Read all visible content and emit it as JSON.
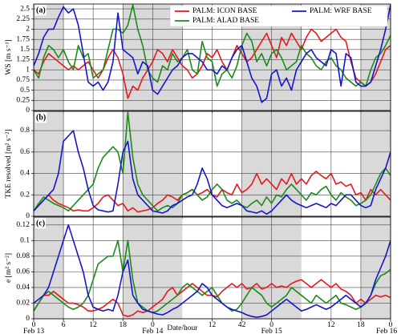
{
  "chart_data": [
    {
      "type": "line",
      "panel_label": "(a)",
      "ylabel": "WS [m s⁻¹]",
      "ylim": [
        0,
        2.62
      ],
      "yticks": [
        0,
        0.25,
        0.5,
        0.75,
        1,
        1.25,
        1.5,
        1.75,
        2,
        2.25,
        2.5
      ],
      "xlim": [
        0,
        72
      ],
      "xticks": [
        0,
        6,
        12,
        18,
        24,
        30,
        36,
        42,
        48,
        54,
        60,
        66,
        72
      ],
      "night": [
        [
          0,
          6
        ],
        [
          18,
          30
        ],
        [
          42,
          54
        ],
        [
          66,
          72
        ]
      ],
      "grid": true,
      "legend": "upper right",
      "x": [
        0,
        1,
        2,
        3,
        4,
        5,
        6,
        7,
        8,
        9,
        10,
        11,
        12,
        13,
        14,
        15,
        16,
        17,
        18,
        19,
        20,
        21,
        22,
        23,
        24,
        25,
        26,
        27,
        28,
        29,
        30,
        31,
        32,
        33,
        34,
        35,
        36,
        37,
        38,
        39,
        40,
        41,
        42,
        43,
        44,
        45,
        46,
        47,
        48,
        49,
        50,
        51,
        52,
        53,
        54,
        55,
        56,
        57,
        58,
        59,
        60,
        61,
        62,
        63,
        64,
        65,
        66,
        67,
        68,
        69,
        70,
        71,
        72
      ],
      "series": [
        {
          "name": "PALM: ICON BASE",
          "color": "#e41a1c",
          "values": [
            1.0,
            0.9,
            1.2,
            1.4,
            1.3,
            1.2,
            1.1,
            1.0,
            1.1,
            1.0,
            1.1,
            1.2,
            1.0,
            0.8,
            1.0,
            1.3,
            1.5,
            1.3,
            0.9,
            0.3,
            0.6,
            0.5,
            0.8,
            1.0,
            1.2,
            1.5,
            1.4,
            1.2,
            1.5,
            1.3,
            1.1,
            1.0,
            0.8,
            0.9,
            1.1,
            1.4,
            1.3,
            1.5,
            1.2,
            1.0,
            1.3,
            1.6,
            1.4,
            1.2,
            1.3,
            1.5,
            1.7,
            1.9,
            1.6,
            1.3,
            1.8,
            1.6,
            1.9,
            1.7,
            1.5,
            1.8,
            2.0,
            1.9,
            1.7,
            1.8,
            1.9,
            2.0,
            1.8,
            1.7,
            1.2,
            0.8,
            0.7,
            0.6,
            0.7,
            0.9,
            1.2,
            1.5,
            1.6
          ]
        },
        {
          "name": "PALM: ALAD BASE",
          "color": "#1a8c1a",
          "values": [
            1.0,
            0.8,
            1.3,
            1.6,
            1.5,
            1.3,
            1.5,
            1.2,
            1.0,
            1.6,
            1.3,
            1.4,
            0.8,
            0.9,
            1.0,
            1.5,
            2.0,
            2.0,
            1.9,
            2.1,
            2.6,
            2.0,
            1.6,
            1.0,
            0.8,
            0.7,
            1.1,
            1.0,
            1.4,
            1.2,
            1.3,
            1.5,
            1.0,
            0.9,
            1.7,
            1.3,
            1.2,
            0.6,
            0.9,
            1.0,
            0.8,
            1.1,
            1.6,
            1.9,
            1.7,
            1.2,
            1.4,
            1.1,
            1.4,
            1.5,
            1.3,
            1.0,
            1.1,
            1.2,
            1.6,
            1.4,
            1.3,
            1.1,
            1.0,
            1.2,
            1.3,
            1.1,
            1.0,
            0.8,
            0.7,
            0.6,
            0.7,
            0.6,
            1.0,
            1.3,
            1.4,
            1.6,
            1.85
          ]
        },
        {
          "name": "PALM: WRF BASE",
          "color": "#1515d0",
          "values": [
            1.1,
            1.4,
            1.8,
            2.0,
            2.0,
            2.3,
            2.55,
            2.4,
            2.5,
            2.1,
            1.4,
            0.7,
            0.6,
            0.7,
            0.5,
            0.7,
            1.2,
            2.4,
            1.5,
            1.4,
            1.3,
            0.9,
            1.2,
            1.1,
            0.5,
            0.4,
            0.6,
            0.8,
            1.0,
            1.1,
            1.3,
            1.4,
            1.4,
            1.3,
            1.2,
            1.0,
            1.0,
            0.9,
            1.1,
            1.0,
            1.3,
            1.5,
            1.6,
            1.2,
            0.8,
            0.6,
            0.2,
            0.3,
            0.9,
            1.0,
            0.6,
            0.8,
            0.5,
            1.0,
            1.2,
            1.4,
            1.5,
            1.3,
            1.2,
            1.1,
            1.5,
            1.4,
            0.6,
            1.4,
            1.3,
            0.7,
            0.6,
            0.6,
            0.7,
            1.1,
            1.5,
            2.0,
            2.6
          ]
        }
      ]
    },
    {
      "type": "line",
      "panel_label": "(b)",
      "ylabel": "TKE resolved [m² s⁻²]",
      "ylim": [
        0,
        0.98
      ],
      "yticks": [
        0,
        0.2,
        0.4,
        0.6,
        0.8
      ],
      "xlim": [
        0,
        72
      ],
      "xticks": [
        0,
        6,
        12,
        18,
        24,
        30,
        36,
        42,
        48,
        54,
        60,
        66,
        72
      ],
      "night": [
        [
          0,
          6
        ],
        [
          18,
          30
        ],
        [
          42,
          54
        ],
        [
          66,
          72
        ]
      ],
      "grid": true,
      "x": [
        0,
        1,
        2,
        3,
        4,
        5,
        6,
        7,
        8,
        9,
        10,
        11,
        12,
        13,
        14,
        15,
        16,
        17,
        18,
        19,
        20,
        21,
        22,
        23,
        24,
        25,
        26,
        27,
        28,
        29,
        30,
        31,
        32,
        33,
        34,
        35,
        36,
        37,
        38,
        39,
        40,
        41,
        42,
        43,
        44,
        45,
        46,
        47,
        48,
        49,
        50,
        51,
        52,
        53,
        54,
        55,
        56,
        57,
        58,
        59,
        60,
        61,
        62,
        63,
        64,
        65,
        66,
        67,
        68,
        69,
        70,
        71,
        72
      ],
      "series": [
        {
          "color": "#e41a1c",
          "values": [
            0.05,
            0.1,
            0.15,
            0.2,
            0.15,
            0.12,
            0.1,
            0.08,
            0.05,
            0.06,
            0.05,
            0.05,
            0.08,
            0.12,
            0.18,
            0.2,
            0.15,
            0.1,
            0.12,
            0.05,
            0.08,
            0.04,
            0.05,
            0.06,
            0.08,
            0.12,
            0.15,
            0.2,
            0.18,
            0.15,
            0.2,
            0.22,
            0.25,
            0.2,
            0.22,
            0.25,
            0.2,
            0.18,
            0.25,
            0.22,
            0.2,
            0.3,
            0.22,
            0.25,
            0.3,
            0.4,
            0.3,
            0.35,
            0.3,
            0.25,
            0.35,
            0.3,
            0.4,
            0.3,
            0.35,
            0.3,
            0.38,
            0.42,
            0.38,
            0.35,
            0.4,
            0.3,
            0.32,
            0.28,
            0.3,
            0.2,
            0.22,
            0.15,
            0.25,
            0.2,
            0.25,
            0.2,
            0.15
          ]
        },
        {
          "color": "#1a8c1a",
          "values": [
            0.05,
            0.12,
            0.18,
            0.15,
            0.12,
            0.1,
            0.08,
            0.05,
            0.1,
            0.15,
            0.2,
            0.25,
            0.3,
            0.45,
            0.55,
            0.6,
            0.65,
            0.6,
            0.4,
            0.97,
            0.55,
            0.3,
            0.2,
            0.15,
            0.1,
            0.05,
            0.08,
            0.1,
            0.08,
            0.12,
            0.2,
            0.22,
            0.25,
            0.2,
            0.15,
            0.18,
            0.25,
            0.3,
            0.25,
            0.15,
            0.12,
            0.15,
            0.1,
            0.08,
            0.12,
            0.15,
            0.1,
            0.18,
            0.12,
            0.2,
            0.18,
            0.25,
            0.3,
            0.25,
            0.2,
            0.15,
            0.22,
            0.2,
            0.25,
            0.28,
            0.2,
            0.15,
            0.22,
            0.18,
            0.15,
            0.1,
            0.12,
            0.15,
            0.2,
            0.3,
            0.4,
            0.45,
            0.38
          ]
        },
        {
          "color": "#1515d0",
          "values": [
            0.05,
            0.1,
            0.15,
            0.2,
            0.25,
            0.4,
            0.7,
            0.75,
            0.8,
            0.6,
            0.45,
            0.25,
            0.1,
            0.06,
            0.05,
            0.04,
            0.05,
            0.3,
            0.6,
            0.7,
            0.35,
            0.2,
            0.15,
            0.1,
            0.05,
            0.04,
            0.03,
            0.05,
            0.1,
            0.12,
            0.15,
            0.18,
            0.2,
            0.3,
            0.45,
            0.35,
            0.2,
            0.15,
            0.1,
            0.08,
            0.1,
            0.12,
            0.1,
            0.05,
            0.04,
            0.03,
            0.05,
            0.02,
            0.05,
            0.1,
            0.15,
            0.2,
            0.15,
            0.12,
            0.1,
            0.08,
            0.1,
            0.12,
            0.1,
            0.08,
            0.12,
            0.1,
            0.15,
            0.2,
            0.2,
            0.15,
            0.1,
            0.08,
            0.1,
            0.25,
            0.35,
            0.45,
            0.6
          ]
        }
      ]
    },
    {
      "type": "line",
      "panel_label": "(c)",
      "ylabel": "e [m² s⁻²]",
      "ylim": [
        0,
        0.13
      ],
      "yticks": [
        0,
        0.02,
        0.04,
        0.06,
        0.08,
        0.1,
        0.12
      ],
      "xlim": [
        0,
        72
      ],
      "xticks": [
        0,
        6,
        12,
        18,
        {
          "value": 24,
          "label": "0"
        },
        {
          "value": 36,
          "label": "12"
        },
        42,
        {
          "value": 48,
          "label": "0"
        },
        {
          "value": 60,
          "label": "12"
        },
        {
          "value": 66,
          "label": "18"
        },
        {
          "value": 72,
          "label": "0"
        }
      ],
      "date_labels": [
        {
          "value": 0,
          "label": "Feb 13"
        },
        {
          "value": 24,
          "label": "Feb 14"
        },
        {
          "value": 48,
          "label": "Feb 15"
        },
        {
          "value": 72,
          "label": "Feb 16"
        }
      ],
      "xlabel": "Date/hour",
      "xlabel_at": 30,
      "night": [
        [
          0,
          6
        ],
        [
          18,
          30
        ],
        [
          42,
          54
        ],
        [
          66,
          72
        ]
      ],
      "grid": true,
      "x": [
        0,
        1,
        2,
        3,
        4,
        5,
        6,
        7,
        8,
        9,
        10,
        11,
        12,
        13,
        14,
        15,
        16,
        17,
        18,
        19,
        20,
        21,
        22,
        23,
        24,
        25,
        26,
        27,
        28,
        29,
        30,
        31,
        32,
        33,
        34,
        35,
        36,
        37,
        38,
        39,
        40,
        41,
        42,
        43,
        44,
        45,
        46,
        47,
        48,
        49,
        50,
        51,
        52,
        53,
        54,
        55,
        56,
        57,
        58,
        59,
        60,
        61,
        62,
        63,
        64,
        65,
        66,
        67,
        68,
        69,
        70,
        71,
        72
      ],
      "series": [
        {
          "color": "#e41a1c",
          "values": [
            0.01,
            0.02,
            0.03,
            0.03,
            0.035,
            0.03,
            0.025,
            0.02,
            0.02,
            0.018,
            0.015,
            0.01,
            0.01,
            0.012,
            0.015,
            0.02,
            0.025,
            0.02,
            0.005,
            0.003,
            0.005,
            0.01,
            0.008,
            0.01,
            0.015,
            0.02,
            0.025,
            0.035,
            0.04,
            0.03,
            0.035,
            0.04,
            0.045,
            0.04,
            0.035,
            0.03,
            0.03,
            0.028,
            0.035,
            0.04,
            0.045,
            0.04,
            0.045,
            0.038,
            0.04,
            0.045,
            0.038,
            0.04,
            0.045,
            0.04,
            0.042,
            0.04,
            0.045,
            0.048,
            0.05,
            0.045,
            0.04,
            0.045,
            0.05,
            0.045,
            0.04,
            0.045,
            0.038,
            0.035,
            0.03,
            0.02,
            0.025,
            0.02,
            0.025,
            0.03,
            0.028,
            0.03,
            0.027
          ]
        },
        {
          "color": "#1a8c1a",
          "values": [
            0.01,
            0.02,
            0.03,
            0.035,
            0.03,
            0.025,
            0.02,
            0.015,
            0.012,
            0.015,
            0.02,
            0.03,
            0.05,
            0.07,
            0.075,
            0.08,
            0.08,
            0.1,
            0.06,
            0.1,
            0.05,
            0.02,
            0.015,
            0.01,
            0.008,
            0.01,
            0.015,
            0.02,
            0.025,
            0.03,
            0.04,
            0.045,
            0.04,
            0.035,
            0.03,
            0.035,
            0.04,
            0.03,
            0.02,
            0.015,
            0.01,
            0.012,
            0.02,
            0.03,
            0.04,
            0.035,
            0.03,
            0.02,
            0.015,
            0.02,
            0.025,
            0.03,
            0.04,
            0.035,
            0.03,
            0.025,
            0.02,
            0.03,
            0.025,
            0.02,
            0.025,
            0.03,
            0.02,
            0.018,
            0.015,
            0.012,
            0.015,
            0.02,
            0.03,
            0.045,
            0.055,
            0.058,
            0.063
          ]
        },
        {
          "color": "#1515d0",
          "values": [
            0.02,
            0.025,
            0.03,
            0.04,
            0.06,
            0.08,
            0.1,
            0.12,
            0.1,
            0.08,
            0.06,
            0.03,
            0.015,
            0.012,
            0.01,
            0.012,
            0.01,
            0.03,
            0.06,
            0.075,
            0.03,
            0.02,
            0.012,
            0.01,
            0.008,
            0.006,
            0.005,
            0.008,
            0.012,
            0.015,
            0.02,
            0.025,
            0.03,
            0.035,
            0.045,
            0.04,
            0.03,
            0.025,
            0.02,
            0.015,
            0.012,
            0.01,
            0.008,
            0.005,
            0.003,
            0.002,
            0.003,
            0.005,
            0.01,
            0.015,
            0.02,
            0.025,
            0.02,
            0.015,
            0.01,
            0.012,
            0.015,
            0.018,
            0.015,
            0.012,
            0.015,
            0.02,
            0.025,
            0.03,
            0.025,
            0.02,
            0.015,
            0.02,
            0.03,
            0.05,
            0.065,
            0.08,
            0.1
          ]
        }
      ]
    }
  ]
}
